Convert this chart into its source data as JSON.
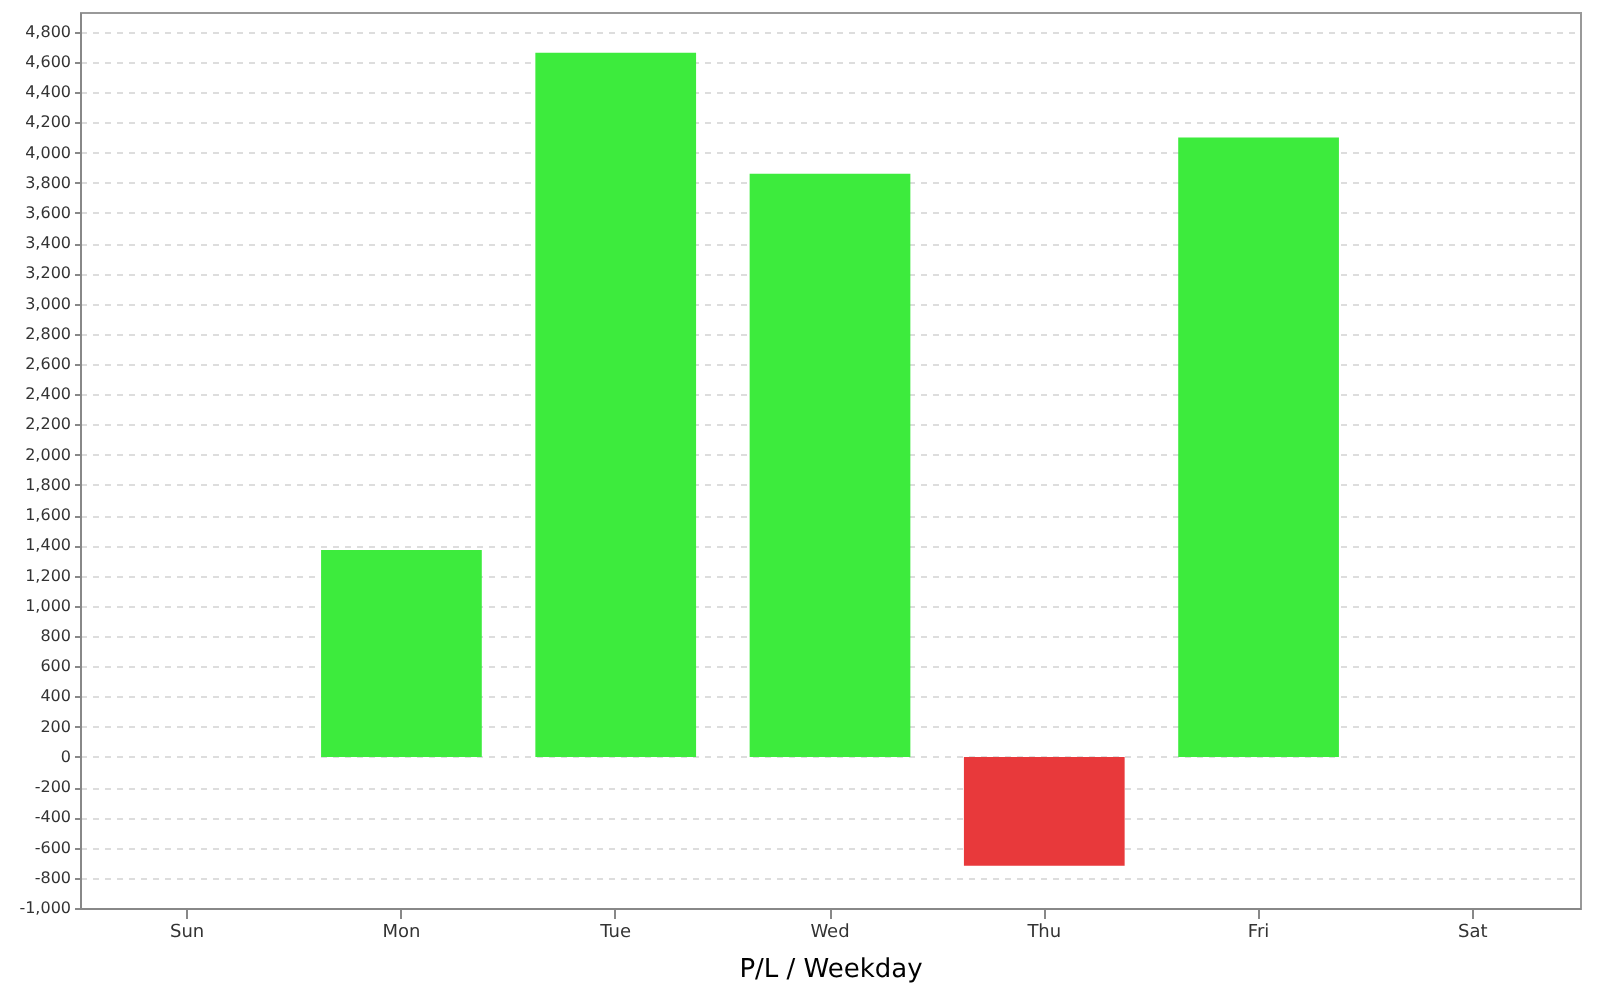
{
  "chart_data": {
    "type": "bar",
    "xlabel": "P/L / Weekday",
    "categories": [
      "Sun",
      "Mon",
      "Tue",
      "Wed",
      "Thu",
      "Fri",
      "Sat"
    ],
    "values": [
      null,
      1370,
      4660,
      3860,
      -720,
      4100,
      null
    ],
    "colors": [
      "#3deb3d",
      "#3deb3d",
      "#3deb3d",
      "#3deb3d",
      "#e8393b",
      "#3deb3d",
      "#3deb3d"
    ],
    "ylim": [
      -1000,
      4930
    ],
    "yticks": [
      {
        "value": -1000,
        "label": "-1,000"
      },
      -800,
      -600,
      -400,
      -200,
      0,
      200,
      400,
      600,
      800,
      {
        "value": 1000,
        "label": "1,000"
      },
      {
        "value": 1200,
        "label": "1,200"
      },
      {
        "value": 1400,
        "label": "1,400"
      },
      {
        "value": 1600,
        "label": "1,600"
      },
      {
        "value": 1800,
        "label": "1,800"
      },
      {
        "value": 2000,
        "label": "2,000"
      },
      {
        "value": 2200,
        "label": "2,200"
      },
      {
        "value": 2400,
        "label": "2,400"
      },
      {
        "value": 2600,
        "label": "2,600"
      },
      {
        "value": 2800,
        "label": "2,800"
      },
      {
        "value": 3000,
        "label": "3,000"
      },
      {
        "value": 3200,
        "label": "3,200"
      },
      {
        "value": 3400,
        "label": "3,400"
      },
      {
        "value": 3600,
        "label": "3,600"
      },
      {
        "value": 3800,
        "label": "3,800"
      },
      {
        "value": 4000,
        "label": "4,000"
      },
      {
        "value": 4200,
        "label": "4,200"
      },
      {
        "value": 4400,
        "label": "4,400"
      },
      {
        "value": 4600,
        "label": "4,600"
      },
      {
        "value": 4800,
        "label": "4,800"
      }
    ],
    "grid": "y"
  }
}
